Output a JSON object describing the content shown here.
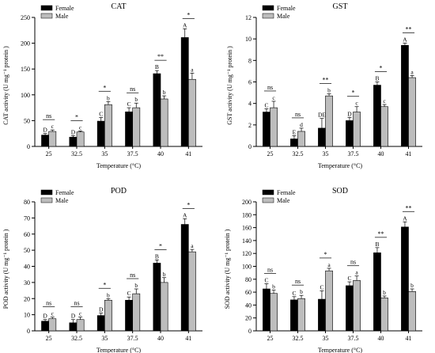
{
  "colors": {
    "female": "#000000",
    "male": "#bdbdbd",
    "axis": "#000000"
  },
  "chart_data": [
    {
      "type": "bar",
      "title": "CAT",
      "xlabel": "Temperature (°C)",
      "ylabel": "CAT activity (U mg⁻¹ protein )",
      "categories": [
        "25",
        "32.5",
        "35",
        "37.5",
        "40",
        "41"
      ],
      "ylim": [
        0,
        250
      ],
      "yticks": [
        0,
        50,
        100,
        150,
        200,
        250
      ],
      "grid": false,
      "legend": "top-left",
      "series": [
        {
          "name": "Female",
          "color": "female",
          "values": [
            22,
            18,
            49,
            67,
            141,
            211
          ],
          "errors": [
            3,
            3,
            7,
            8,
            6,
            17
          ],
          "letters": [
            "D",
            "D",
            "C",
            "C",
            "B",
            "A"
          ]
        },
        {
          "name": "Male",
          "color": "male",
          "values": [
            29,
            28,
            81,
            75,
            92,
            130
          ],
          "errors": [
            3,
            2,
            6,
            9,
            6,
            12
          ],
          "letters": [
            "c",
            "c",
            "b",
            "b",
            "b",
            "a"
          ]
        }
      ],
      "significance": [
        "ns",
        "*",
        "*",
        "ns",
        "**",
        "*"
      ]
    },
    {
      "type": "bar",
      "title": "GST",
      "xlabel": "Temperature (°C)",
      "ylabel": "GST activity (U mg⁻¹ protein )",
      "categories": [
        "25",
        "32.5",
        "35",
        "37.5",
        "40",
        "41"
      ],
      "ylim": [
        0,
        12
      ],
      "yticks": [
        0,
        2,
        4,
        6,
        8,
        10,
        12
      ],
      "grid": false,
      "legend": "top-left",
      "series": [
        {
          "name": "Female",
          "color": "female",
          "values": [
            3.2,
            0.7,
            1.7,
            2.4,
            5.7,
            9.4
          ],
          "errors": [
            0.3,
            0.3,
            0.9,
            0.3,
            0.3,
            0.2
          ],
          "letters": [
            "C",
            "E",
            "DE",
            "D",
            "B",
            "A"
          ]
        },
        {
          "name": "Male",
          "color": "male",
          "values": [
            3.6,
            1.4,
            4.7,
            3.2,
            3.7,
            6.4
          ],
          "errors": [
            0.6,
            0.3,
            0.2,
            0.5,
            0.2,
            0.2
          ],
          "letters": [
            "c",
            "d",
            "b",
            "c",
            "c",
            "a"
          ]
        }
      ],
      "significance": [
        "ns",
        "ns",
        "**",
        "*",
        "*",
        "**"
      ]
    },
    {
      "type": "bar",
      "title": "POD",
      "xlabel": "Temperature (°C)",
      "ylabel": "POD activity (U mg⁻¹ protein )",
      "categories": [
        "25",
        "32.5",
        "35",
        "37.5",
        "40",
        "41"
      ],
      "ylim": [
        0,
        80
      ],
      "yticks": [
        0,
        10,
        20,
        30,
        40,
        50,
        60,
        70,
        80
      ],
      "grid": false,
      "legend": "top-left",
      "series": [
        {
          "name": "Female",
          "color": "female",
          "values": [
            6,
            5,
            9.5,
            19,
            42,
            66
          ],
          "errors": [
            1,
            2,
            1.5,
            2,
            2,
            3.5
          ],
          "letters": [
            "D",
            "D",
            "D",
            "C",
            "B",
            "A"
          ]
        },
        {
          "name": "Male",
          "color": "male",
          "values": [
            7.5,
            7,
            19,
            23,
            30,
            49
          ],
          "errors": [
            1,
            1.5,
            1,
            3,
            3,
            1.5
          ],
          "letters": [
            "c",
            "c",
            "b",
            "b",
            "b",
            "a"
          ]
        }
      ],
      "significance": [
        "ns",
        "ns",
        "*",
        "ns",
        "*",
        "*"
      ]
    },
    {
      "type": "bar",
      "title": "SOD",
      "xlabel": "Temperature (°C)",
      "ylabel": "SOD activity (U mg⁻¹ protein )",
      "categories": [
        "25",
        "32.5",
        "35",
        "37.5",
        "40",
        "41"
      ],
      "ylim": [
        0,
        200
      ],
      "yticks": [
        0,
        20,
        40,
        60,
        80,
        100,
        120,
        140,
        160,
        180,
        200
      ],
      "grid": false,
      "legend": "top-left",
      "series": [
        {
          "name": "Female",
          "color": "female",
          "values": [
            65,
            48,
            49,
            70,
            121,
            161
          ],
          "errors": [
            8,
            5,
            13,
            6,
            8,
            8
          ],
          "letters": [
            "C",
            "C",
            "C",
            "C",
            "B",
            "A"
          ]
        },
        {
          "name": "Male",
          "color": "male",
          "values": [
            58,
            50,
            93,
            78,
            51,
            61
          ],
          "errors": [
            5,
            5,
            4,
            7,
            3,
            4
          ],
          "letters": [
            "b",
            "b",
            "a",
            "a",
            "b",
            "b"
          ]
        }
      ],
      "significance": [
        "ns",
        "ns",
        "*",
        "ns",
        "**",
        "**"
      ]
    }
  ]
}
